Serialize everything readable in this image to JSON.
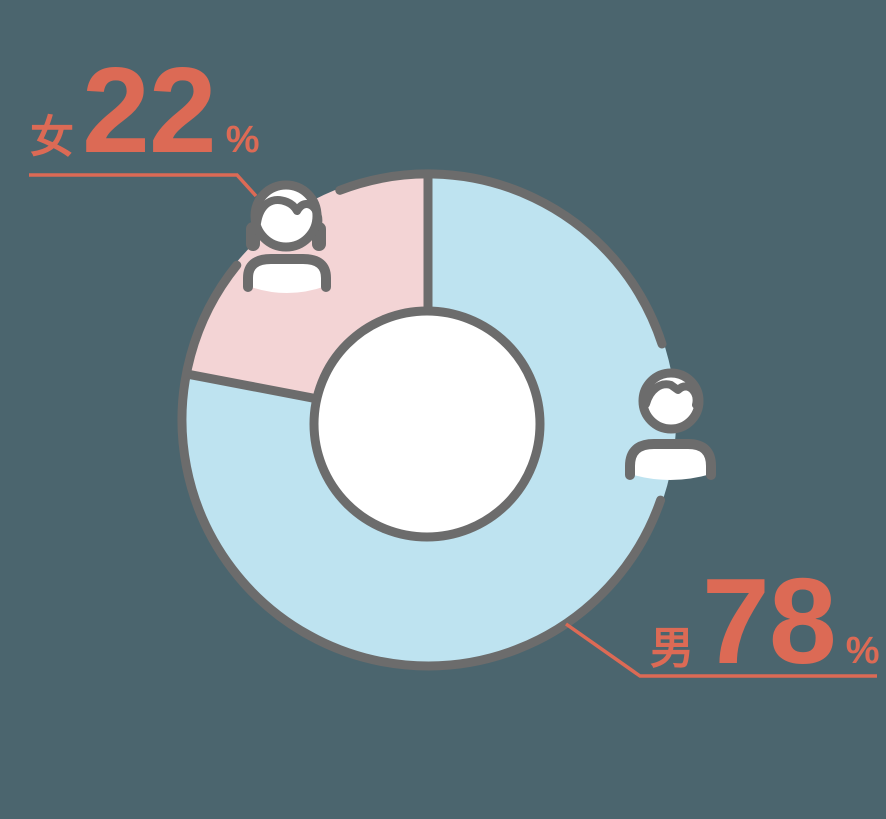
{
  "colors": {
    "background": "#4b656e",
    "outline_gray": "#6c6c6c",
    "female_pink": "#f3d4d5",
    "male_blue": "#bee3f0",
    "accent_coral": "#dc6a55",
    "white": "#ffffff"
  },
  "chart_data": {
    "type": "pie",
    "donut": true,
    "start": "top",
    "direction": "clockwise",
    "unit": "%",
    "grid": false,
    "legend_position": "callout-labels",
    "slices": [
      {
        "label": "男",
        "value": 78,
        "color_key": "male_blue"
      },
      {
        "label": "女",
        "value": 22,
        "color_key": "female_pink"
      }
    ]
  },
  "labels": {
    "female": {
      "category": "女",
      "value": "22",
      "unit": "%"
    },
    "male": {
      "category": "男",
      "value": "78",
      "unit": "%"
    }
  },
  "icons": {
    "female": "female-person-icon",
    "male": "male-person-icon"
  }
}
